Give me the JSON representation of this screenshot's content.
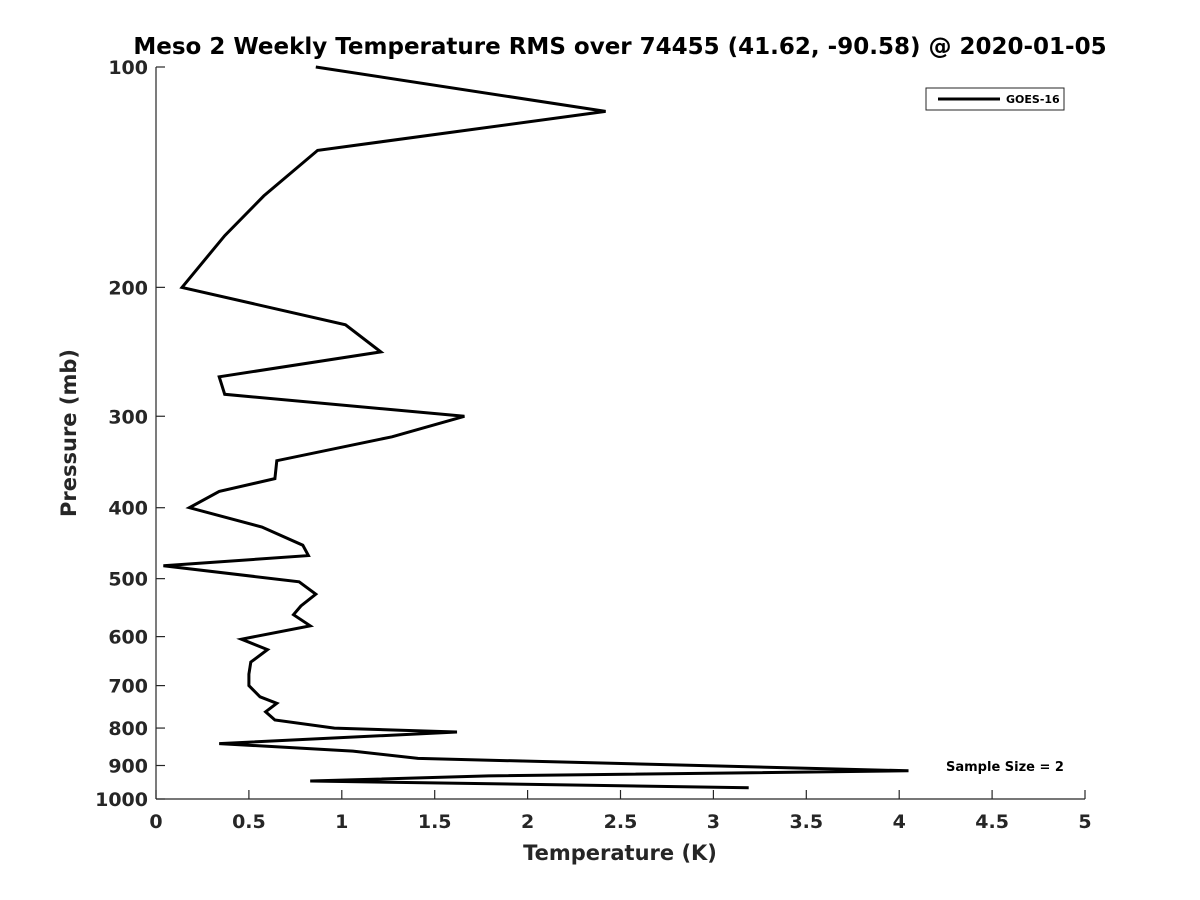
{
  "chart_data": {
    "type": "line",
    "title": "Meso 2 Weekly Temperature RMS over 74455 (41.62, -90.58) @ 2020-01-05",
    "xlabel": "Temperature (K)",
    "ylabel": "Pressure (mb)",
    "xlim": [
      0,
      5
    ],
    "ylim": [
      100,
      1000
    ],
    "y_scale": "log",
    "y_reversed": true,
    "x_ticks": [
      "0",
      "0.5",
      "1",
      "1.5",
      "2",
      "2.5",
      "3",
      "3.5",
      "4",
      "4.5",
      "5"
    ],
    "y_ticks": [
      "100",
      "200",
      "300",
      "400",
      "500",
      "600",
      "700",
      "800",
      "900",
      "1000"
    ],
    "grid": false,
    "legend": {
      "position": "top-right",
      "entries": [
        "GOES-16"
      ]
    },
    "annotation": "Sample Size = 2",
    "series": [
      {
        "name": "GOES-16",
        "color": "#000000",
        "x": [
          0.86,
          2.42,
          0.87,
          0.58,
          0.37,
          0.14,
          1.02,
          1.21,
          0.34,
          0.37,
          1.66,
          1.27,
          0.65,
          0.64,
          0.34,
          0.18,
          0.57,
          0.79,
          0.82,
          0.04,
          0.77,
          0.86,
          0.78,
          0.74,
          0.83,
          0.46,
          0.6,
          0.51,
          0.5,
          0.5,
          0.56,
          0.65,
          0.59,
          0.64,
          0.96,
          1.62,
          0.34,
          1.06,
          1.41,
          4.05,
          1.79,
          0.83,
          3.19
        ],
        "y": [
          100,
          115,
          130,
          150,
          170,
          200,
          225,
          245,
          265,
          280,
          300,
          320,
          345,
          365,
          380,
          400,
          425,
          450,
          465,
          480,
          505,
          525,
          545,
          560,
          580,
          605,
          625,
          650,
          675,
          700,
          725,
          740,
          760,
          780,
          800,
          810,
          840,
          860,
          880,
          915,
          930,
          945,
          965
        ]
      }
    ]
  }
}
